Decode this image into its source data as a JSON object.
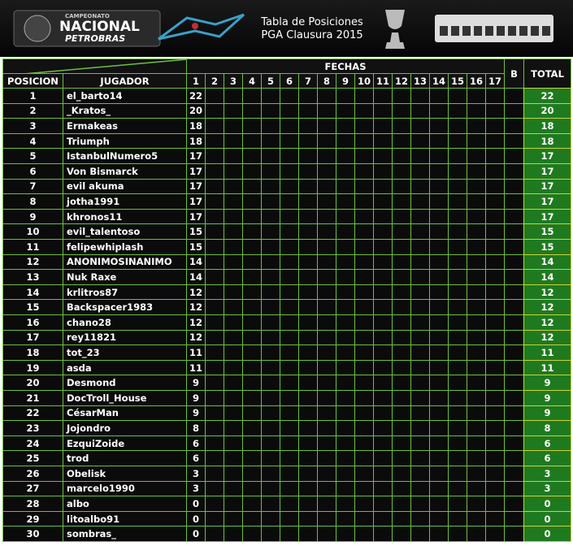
{
  "header": {
    "logo": [
      "CAMPEONATO",
      "NACIONAL",
      "PETROBRAS"
    ],
    "title": [
      "Tabla de Posiciones",
      "PGA Clausura 2015"
    ]
  },
  "table": {
    "group_header": "FECHAS",
    "columns": [
      "POSICION",
      "JUGADOR",
      "1",
      "2",
      "3",
      "4",
      "5",
      "6",
      "7",
      "8",
      "9",
      "10",
      "11",
      "12",
      "13",
      "14",
      "15",
      "16",
      "17",
      "B",
      "TOTAL"
    ],
    "rows": [
      [
        1,
        "el_barto14",
        22,
        22
      ],
      [
        2,
        "_Kratos_",
        20,
        20
      ],
      [
        3,
        "Ermakeas",
        18,
        18
      ],
      [
        4,
        "Triumph",
        18,
        18
      ],
      [
        5,
        "IstanbulNumero5",
        17,
        17
      ],
      [
        6,
        "Von Bismarck",
        17,
        17
      ],
      [
        7,
        "evil akuma",
        17,
        17
      ],
      [
        8,
        "jotha1991",
        17,
        17
      ],
      [
        9,
        "khronos11",
        17,
        17
      ],
      [
        10,
        "evil_talentoso",
        15,
        15
      ],
      [
        11,
        "felipewhiplash",
        15,
        15
      ],
      [
        12,
        "ANONIMOSINANIMO",
        14,
        14
      ],
      [
        13,
        "Nuk Raxe",
        14,
        14
      ],
      [
        14,
        "krlitros87",
        12,
        12
      ],
      [
        15,
        "Backspacer1983",
        12,
        12
      ],
      [
        16,
        "chano28",
        12,
        12
      ],
      [
        17,
        "rey11821",
        12,
        12
      ],
      [
        18,
        "tot_23",
        11,
        11
      ],
      [
        19,
        "asda",
        11,
        11
      ],
      [
        20,
        "Desmond",
        9,
        9
      ],
      [
        21,
        "DocTroll_House",
        9,
        9
      ],
      [
        22,
        "CésarMan",
        9,
        9
      ],
      [
        23,
        "Jojondro",
        8,
        8
      ],
      [
        24,
        "EzquiZoide",
        6,
        6
      ],
      [
        25,
        "trod",
        6,
        6
      ],
      [
        26,
        "Obelisk",
        3,
        3
      ],
      [
        27,
        "marcelo1990",
        3,
        3
      ],
      [
        28,
        "albo",
        0,
        0
      ],
      [
        29,
        "litoalbo91",
        0,
        0
      ],
      [
        30,
        "sombras_",
        0,
        0
      ]
    ]
  }
}
